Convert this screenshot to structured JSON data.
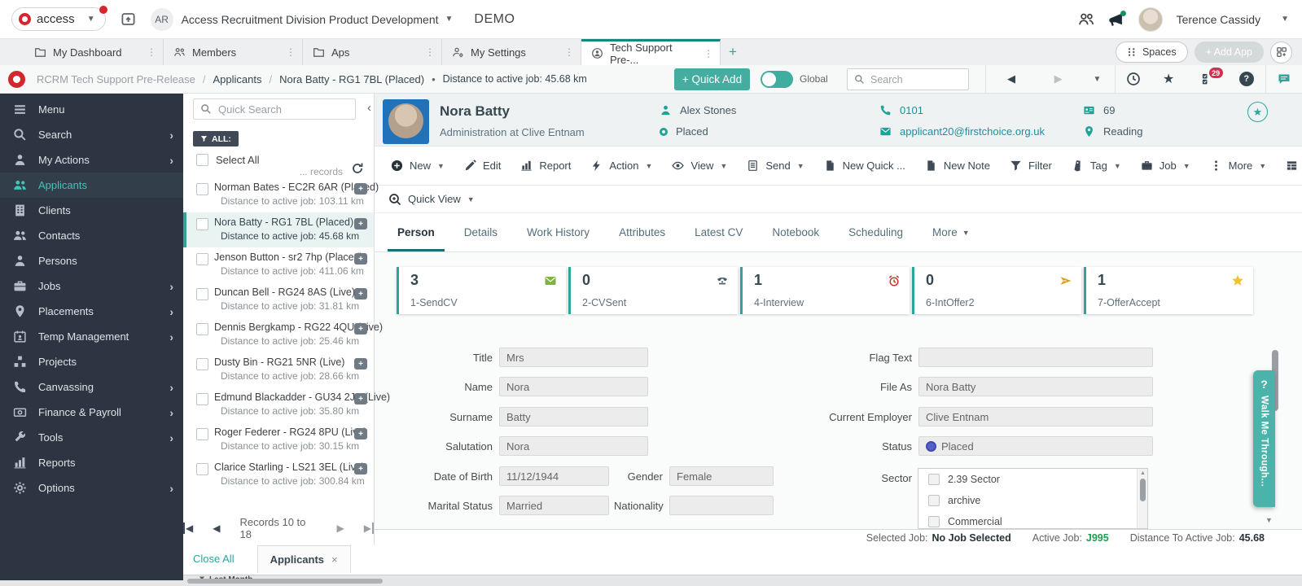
{
  "colors": {
    "accent": "#2fa49a",
    "accent_dark": "#17877b",
    "brand_red": "#d22730",
    "badge_red": "#cf3050",
    "active_job_green": "#1e9e50",
    "status_blue": "#5560c8",
    "sendcv_green": "#7cb342",
    "gold": "#d8a01d"
  },
  "top_bar": {
    "brand": "access",
    "workspace_initials": "AR",
    "workspace_name": "Access Recruitment Division Product Development",
    "environment": "DEMO",
    "user_name": "Terence Cassidy"
  },
  "tab_bar": {
    "tabs": [
      {
        "label": "My Dashboard",
        "icon": "folder"
      },
      {
        "label": "Members",
        "icon": "people-o"
      },
      {
        "label": "Aps",
        "icon": "folder"
      },
      {
        "label": "My Settings",
        "icon": "person-gear"
      },
      {
        "label": "Tech Support Pre-...",
        "icon": "person-pin",
        "active": true
      }
    ],
    "new_tab": "+",
    "spaces_label": "Spaces",
    "add_app_label": "+ Add App"
  },
  "crumb_bar": {
    "path": [
      "RCRM Tech Support Pre-Release",
      "Applicants",
      "Nora Batty - RG1 7BL (Placed)"
    ],
    "note": "Distance to active job: 45.68 km",
    "quick_add_label": "+ Quick Add",
    "global_label": "Global",
    "search_placeholder": "Search",
    "notifications_count": "29"
  },
  "sidebar": {
    "items": [
      {
        "label": "Menu",
        "icon": "hamburger",
        "arrow": false
      },
      {
        "label": "Search",
        "icon": "magnify",
        "arrow": true
      },
      {
        "label": "My Actions",
        "icon": "person",
        "arrow": true
      },
      {
        "label": "Applicants",
        "icon": "people",
        "arrow": false,
        "active": true
      },
      {
        "label": "Clients",
        "icon": "building",
        "arrow": false
      },
      {
        "label": "Contacts",
        "icon": "people",
        "arrow": false
      },
      {
        "label": "Persons",
        "icon": "person",
        "arrow": false
      },
      {
        "label": "Jobs",
        "icon": "briefcase",
        "arrow": true
      },
      {
        "label": "Placements",
        "icon": "pin",
        "arrow": true
      },
      {
        "label": "Temp Management",
        "icon": "calendar",
        "arrow": true
      },
      {
        "label": "Projects",
        "icon": "blocks",
        "arrow": false
      },
      {
        "label": "Canvassing",
        "icon": "phone",
        "arrow": true
      },
      {
        "label": "Finance & Payroll",
        "icon": "money",
        "arrow": true
      },
      {
        "label": "Tools",
        "icon": "wrench",
        "arrow": true
      },
      {
        "label": "Reports",
        "icon": "chart",
        "arrow": false
      },
      {
        "label": "Options",
        "icon": "gear",
        "arrow": true
      }
    ]
  },
  "list_panel": {
    "search_placeholder": "Quick Search",
    "filter_label": "ALL:",
    "select_all_label": "Select All",
    "records_hint": "... records",
    "items": [
      {
        "name": "Norman Bates - EC2R 6AR (Placed)",
        "distance": "Distance to active job: 103.11 km"
      },
      {
        "name": "Nora Batty - RG1 7BL (Placed)",
        "distance": "Distance to active job: 45.68 km",
        "selected": true
      },
      {
        "name": "Jenson Button - sr2 7hp (Placed)",
        "distance": "Distance to active job: 411.06 km"
      },
      {
        "name": "Duncan Bell - RG24 8AS (Live)",
        "distance": "Distance to active job: 31.81 km"
      },
      {
        "name": "Dennis Bergkamp - RG22 4QU (Live)",
        "distance": "Distance to active job: 25.46 km"
      },
      {
        "name": "Dusty Bin - RG21 5NR (Live)",
        "distance": "Distance to active job: 28.66 km"
      },
      {
        "name": "Edmund Blackadder - GU34 2JS (Live)",
        "distance": "Distance to active job: 35.80 km"
      },
      {
        "name": "Roger Federer - RG24 8PU (Live)",
        "distance": "Distance to active job: 30.15 km"
      },
      {
        "name": "Clarice Starling - LS21 3EL (Live)",
        "distance": "Distance to active job: 300.84 km"
      }
    ],
    "pagination": "Records 10 to 18"
  },
  "record": {
    "name": "Nora Batty",
    "subtitle": "Administration at Clive Entnam",
    "consultant": "Alex Stones",
    "status": "Placed",
    "phone": "0101",
    "email": "applicant20@firstchoice.org.uk",
    "ref": "69",
    "location": "Reading"
  },
  "toolbar": {
    "items": [
      {
        "label": "New",
        "icon": "plus-circle",
        "caret": true
      },
      {
        "label": "Edit",
        "icon": "pencil"
      },
      {
        "label": "Report",
        "icon": "chart"
      },
      {
        "label": "Action",
        "icon": "lightning",
        "caret": true
      },
      {
        "label": "View",
        "icon": "eye",
        "caret": true
      },
      {
        "label": "Send",
        "icon": "doc-lines",
        "caret": true
      },
      {
        "label": "New Quick ...",
        "icon": "page"
      },
      {
        "label": "New Note",
        "icon": "page"
      },
      {
        "label": "Filter",
        "icon": "funnel"
      },
      {
        "label": "Tag",
        "icon": "tag",
        "caret": true
      },
      {
        "label": "Job",
        "icon": "briefcase",
        "caret": true
      },
      {
        "label": "More",
        "icon": "kebab",
        "caret": true
      },
      {
        "label": "Table",
        "icon": "table"
      },
      {
        "label": "Refresh",
        "icon": "refresh"
      }
    ]
  },
  "quick_view_label": "Quick View",
  "record_tabs": {
    "items": [
      {
        "label": "Person",
        "active": true
      },
      {
        "label": "Details"
      },
      {
        "label": "Work History"
      },
      {
        "label": "Attributes"
      },
      {
        "label": "Latest CV"
      },
      {
        "label": "Notebook"
      },
      {
        "label": "Scheduling"
      }
    ],
    "more_label": "More"
  },
  "stats": [
    {
      "value": "3",
      "label": "1-SendCV",
      "icon": "envelope-green"
    },
    {
      "value": "0",
      "label": "2-CVSent",
      "icon": "phone-dark"
    },
    {
      "value": "1",
      "label": "4-Interview",
      "icon": "alarm-red"
    },
    {
      "value": "0",
      "label": "6-IntOffer2",
      "icon": "send-gold"
    },
    {
      "value": "1",
      "label": "7-OfferAccept",
      "icon": "star-gold"
    }
  ],
  "form": {
    "left": [
      {
        "label": "Title",
        "value": "Mrs"
      },
      {
        "label": "Name",
        "value": "Nora"
      },
      {
        "label": "Surname",
        "value": "Batty"
      },
      {
        "label": "Salutation",
        "value": "Nora"
      },
      {
        "label": "Date of Birth",
        "value": "11/12/1944",
        "pair_label": "Gender",
        "pair_value": "Female"
      },
      {
        "label": "Marital Status",
        "value": "Married",
        "pair_label": "Nationality",
        "pair_value": ""
      }
    ],
    "right": [
      {
        "label": "Flag Text",
        "value": ""
      },
      {
        "label": "File As",
        "value": "Nora Batty"
      },
      {
        "label": "Current Employer",
        "value": "Clive Entnam"
      },
      {
        "label": "Status",
        "value": "Placed"
      }
    ],
    "sector": {
      "label": "Sector",
      "options": [
        "2.39 Sector",
        "archive",
        "Commercial"
      ]
    }
  },
  "status_bar": {
    "selected_label": "Selected Job:",
    "selected_value": "No Job Selected",
    "active_label": "Active Job:",
    "active_value": "J995",
    "distance_label": "Distance To Active Job:",
    "distance_value": "45.68"
  },
  "footer": {
    "close_all_label": "Close All",
    "tab_label": "Applicants",
    "tab_close": "×"
  },
  "walkme": {
    "q": "?",
    "label": "Walk Me Through..."
  },
  "bottom_fragment": "Last Month"
}
